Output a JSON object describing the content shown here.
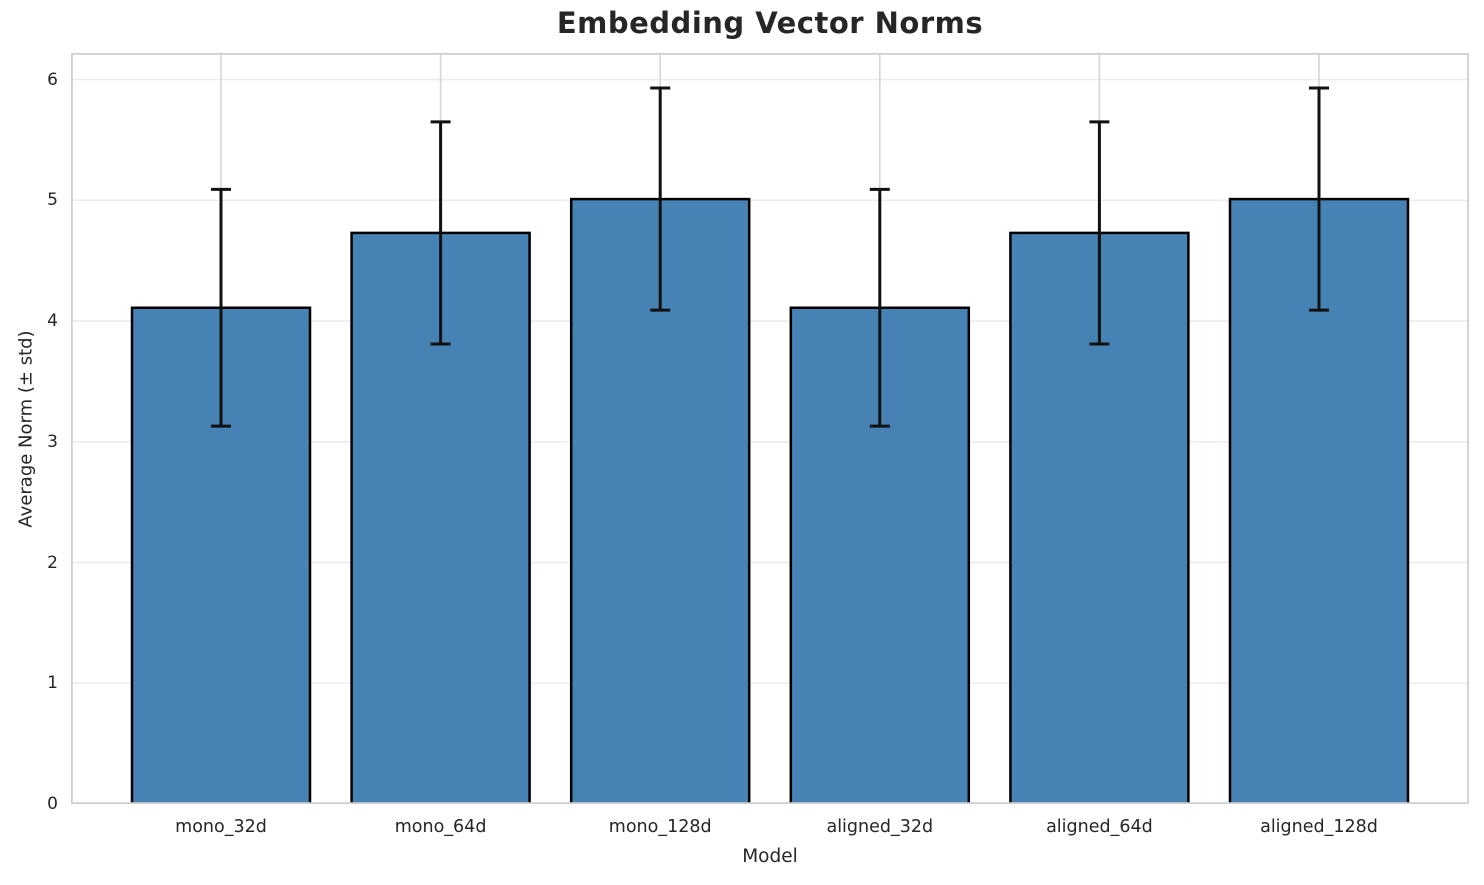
{
  "chart_data": {
    "type": "bar",
    "title": "Embedding Vector Norms",
    "xlabel": "Model",
    "ylabel": "Average Norm (± std)",
    "categories": [
      "mono_32d",
      "mono_64d",
      "mono_128d",
      "aligned_32d",
      "aligned_64d",
      "aligned_128d"
    ],
    "series": [
      {
        "name": "average_norm",
        "values": [
          4.11,
          4.73,
          5.01,
          4.11,
          4.73,
          5.01
        ],
        "errors": [
          0.98,
          0.92,
          0.92,
          0.98,
          0.92,
          0.92
        ]
      }
    ],
    "error_bar_tops": [
      5.09,
      5.65,
      5.93,
      5.09,
      5.65,
      5.93
    ],
    "error_bar_bottoms": [
      3.13,
      3.81,
      4.09,
      3.13,
      3.81,
      4.09
    ],
    "yticks": [
      0,
      1,
      2,
      3,
      4,
      5,
      6
    ],
    "ylim": [
      0,
      6.22
    ],
    "grid": "both",
    "legend": "none",
    "colors": {
      "bar_fill": "#4682B4",
      "bar_edge": "#000000",
      "error_bar": "#111111",
      "grid_horizontal": "#ececec",
      "grid_vertical": "#d6d6d6",
      "spine": "#cfcfcf",
      "text": "#262626"
    }
  }
}
